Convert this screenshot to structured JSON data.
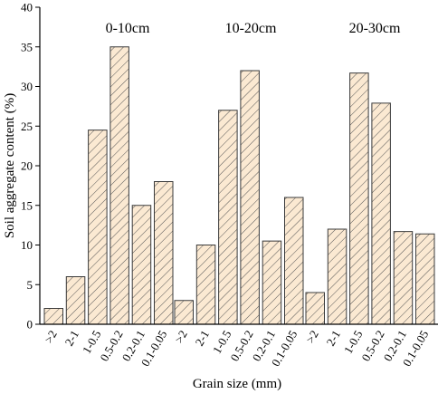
{
  "chart_data": {
    "type": "bar",
    "ylabel": "Soil aggregate content (%)",
    "xlabel": "Grain size (mm)",
    "ylim": [
      0,
      40
    ],
    "yticks": [
      0,
      5,
      10,
      15,
      20,
      25,
      30,
      35,
      40
    ],
    "categories": [
      ">2",
      "2-1",
      "1-0.5",
      "0.5-0.2",
      "0.2-0.1",
      "0.1-0.05"
    ],
    "groups": [
      {
        "label": "0-10cm",
        "values": [
          2,
          6,
          24.5,
          35,
          15,
          18
        ]
      },
      {
        "label": "10-20cm",
        "values": [
          3,
          10,
          27,
          32,
          10.5,
          16
        ]
      },
      {
        "label": "20-30cm",
        "values": [
          4,
          12,
          31.7,
          27.9,
          11.7,
          11.4
        ]
      }
    ],
    "bar_fill": "#fbe9d2",
    "bar_hatch": "#555555",
    "grid": false,
    "legend": "none"
  }
}
